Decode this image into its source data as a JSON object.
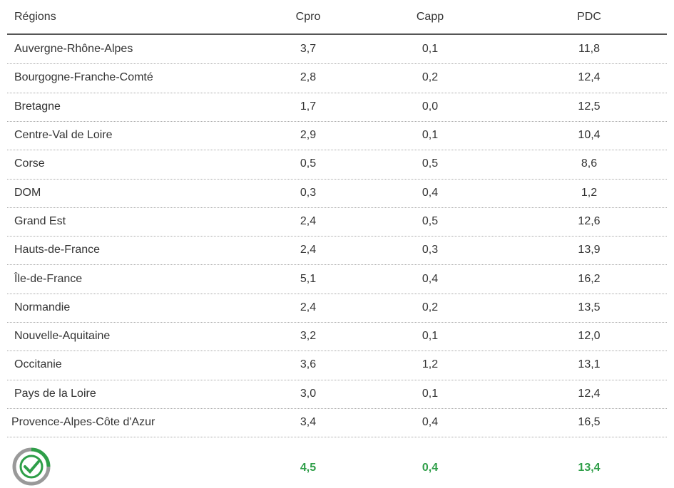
{
  "table": {
    "columns": [
      "Régions",
      "Cpro",
      "Capp",
      "PDC"
    ],
    "rows": [
      [
        "Auvergne-Rhône-Alpes",
        "3,7",
        "0,1",
        "11,8"
      ],
      [
        "Bourgogne-Franche-Comté",
        "2,8",
        "0,2",
        "12,4"
      ],
      [
        "Bretagne",
        "1,7",
        "0,0",
        "12,5"
      ],
      [
        "Centre-Val de Loire",
        "2,9",
        "0,1",
        "10,4"
      ],
      [
        "Corse",
        "0,5",
        "0,5",
        "8,6"
      ],
      [
        "DOM",
        "0,3",
        "0,4",
        "1,2"
      ],
      [
        "Grand Est",
        "2,4",
        "0,5",
        "12,6"
      ],
      [
        "Hauts-de-France",
        "2,4",
        "0,3",
        "13,9"
      ],
      [
        "Île-de-France",
        "5,1",
        "0,4",
        "16,2"
      ],
      [
        "Normandie",
        "2,4",
        "0,2",
        "13,5"
      ],
      [
        "Nouvelle-Aquitaine",
        "3,2",
        "0,1",
        "12,0"
      ],
      [
        "Occitanie",
        "3,6",
        "1,2",
        "13,1"
      ],
      [
        "Pays de la Loire",
        "3,0",
        "0,1",
        "12,4"
      ],
      [
        "Provence-Alpes-Côte d'Azur",
        "3,4",
        "0,4",
        "16,5"
      ]
    ],
    "total": [
      "4,5",
      "0,4",
      "13,4"
    ]
  }
}
